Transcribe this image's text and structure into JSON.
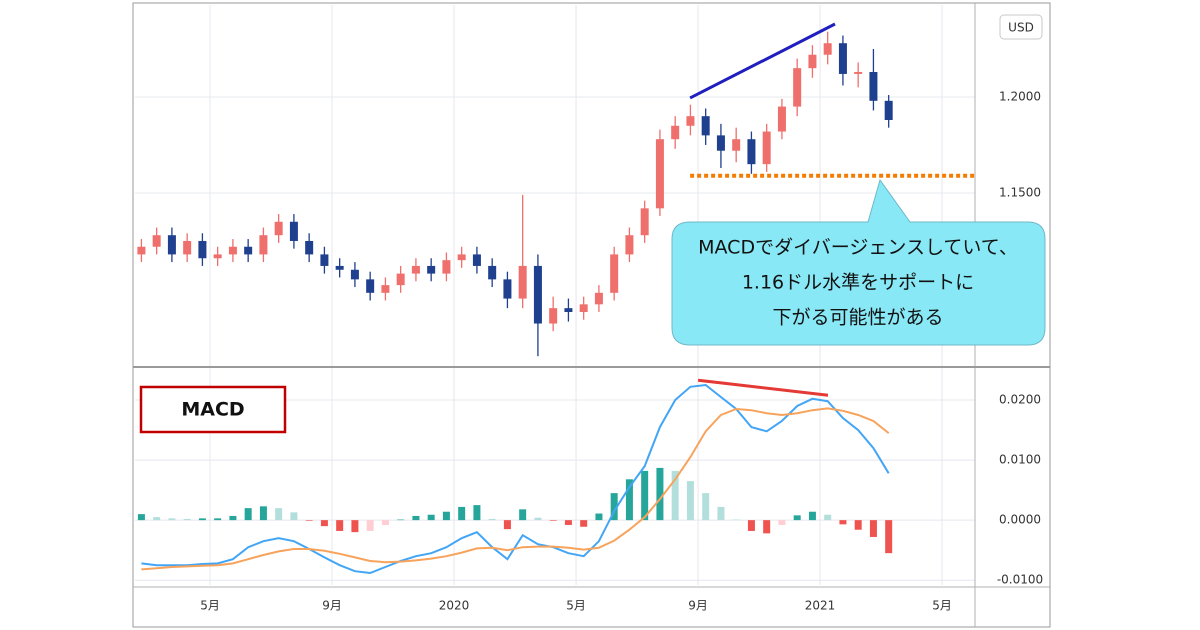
{
  "chart_data": [
    {
      "type": "candlestick",
      "currency": "USD",
      "x": [
        1.75,
        2.25,
        2.75,
        3.25,
        3.75,
        4.25,
        4.75,
        5.25,
        5.75,
        6.25,
        6.75,
        7.25,
        7.75,
        8.25,
        8.75,
        9.25,
        9.75,
        10.25,
        10.75,
        11.25,
        11.75,
        12.25,
        12.75,
        13.25,
        13.75,
        14.25,
        14.75,
        15.25,
        15.75,
        16.25,
        16.75,
        17.25,
        17.75,
        18.25,
        18.75,
        19.25,
        19.75,
        20.25,
        20.75,
        21.25,
        21.75,
        22.25,
        22.75,
        23.25,
        23.75,
        24.25,
        24.75,
        25.25,
        25.75,
        26.25
      ],
      "open": [
        1.118,
        1.122,
        1.128,
        1.118,
        1.125,
        1.116,
        1.118,
        1.122,
        1.118,
        1.128,
        1.135,
        1.125,
        1.118,
        1.112,
        1.11,
        1.105,
        1.098,
        1.102,
        1.108,
        1.112,
        1.108,
        1.115,
        1.118,
        1.112,
        1.105,
        1.095,
        1.112,
        1.082,
        1.09,
        1.088,
        1.092,
        1.098,
        1.118,
        1.128,
        1.142,
        1.178,
        1.185,
        1.19,
        1.18,
        1.172,
        1.178,
        1.165,
        1.182,
        1.195,
        1.215,
        1.222,
        1.228,
        1.212,
        1.213,
        1.198
      ],
      "high": [
        1.126,
        1.132,
        1.132,
        1.129,
        1.129,
        1.122,
        1.126,
        1.126,
        1.132,
        1.139,
        1.139,
        1.129,
        1.122,
        1.116,
        1.114,
        1.109,
        1.106,
        1.112,
        1.116,
        1.116,
        1.119,
        1.122,
        1.122,
        1.116,
        1.109,
        1.149,
        1.118,
        1.096,
        1.095,
        1.096,
        1.102,
        1.122,
        1.132,
        1.146,
        1.183,
        1.19,
        1.196,
        1.194,
        1.186,
        1.184,
        1.182,
        1.186,
        1.199,
        1.22,
        1.227,
        1.234,
        1.232,
        1.218,
        1.225,
        1.201
      ],
      "low": [
        1.114,
        1.118,
        1.114,
        1.114,
        1.112,
        1.112,
        1.114,
        1.114,
        1.114,
        1.124,
        1.121,
        1.114,
        1.108,
        1.106,
        1.101,
        1.094,
        1.094,
        1.098,
        1.104,
        1.104,
        1.104,
        1.111,
        1.108,
        1.101,
        1.09,
        1.09,
        1.065,
        1.078,
        1.083,
        1.084,
        1.088,
        1.094,
        1.114,
        1.124,
        1.138,
        1.173,
        1.18,
        1.175,
        1.163,
        1.166,
        1.16,
        1.161,
        1.178,
        1.19,
        1.21,
        1.217,
        1.206,
        1.205,
        1.193,
        1.184
      ],
      "close": [
        1.122,
        1.128,
        1.118,
        1.125,
        1.116,
        1.118,
        1.122,
        1.118,
        1.128,
        1.135,
        1.125,
        1.118,
        1.112,
        1.11,
        1.105,
        1.098,
        1.102,
        1.108,
        1.112,
        1.108,
        1.115,
        1.118,
        1.112,
        1.105,
        1.095,
        1.112,
        1.082,
        1.09,
        1.088,
        1.092,
        1.098,
        1.118,
        1.128,
        1.142,
        1.178,
        1.185,
        1.19,
        1.18,
        1.172,
        1.178,
        1.165,
        1.182,
        1.195,
        1.215,
        1.222,
        1.228,
        1.212,
        1.213,
        1.198,
        1.188
      ],
      "up_color": "#ef6f6c",
      "down_color": "#1f3f8f",
      "xlim": [
        1.54,
        29.08
      ],
      "ylim": [
        1.0604,
        1.2479
      ],
      "yticks": [
        {
          "value": 1.15,
          "label": "1.1500"
        },
        {
          "value": 1.2,
          "label": "1.2000"
        }
      ],
      "trend_line": {
        "x": [
          19.74,
          24.49
        ],
        "y": [
          1.1995,
          1.238
        ],
        "color": "#1f1fbf"
      },
      "support_line": {
        "value": 1.159,
        "x": [
          19.74,
          29.08
        ],
        "color": "#f57c00"
      },
      "callout": {
        "lines": [
          "MACDでダイバージェンスしていて、",
          "1.16ドル水準をサポートに",
          "下がる可能性がある"
        ],
        "color": "#88e8f6"
      }
    },
    {
      "type": "macd",
      "title": "MACD",
      "x": [
        1.75,
        2.25,
        2.75,
        3.25,
        3.75,
        4.25,
        4.75,
        5.25,
        5.75,
        6.25,
        6.75,
        7.25,
        7.75,
        8.25,
        8.75,
        9.25,
        9.75,
        10.25,
        10.75,
        11.25,
        11.75,
        12.25,
        12.75,
        13.25,
        13.75,
        14.25,
        14.75,
        15.25,
        15.75,
        16.25,
        16.75,
        17.25,
        17.75,
        18.25,
        18.75,
        19.25,
        19.75,
        20.25,
        20.75,
        21.25,
        21.75,
        22.25,
        22.75,
        23.25,
        23.75,
        24.25,
        24.75,
        25.25,
        25.75,
        26.25
      ],
      "lines": [
        {
          "color": "#42a5f5",
          "values": [
            -0.0072,
            -0.0075,
            -0.0075,
            -0.0075,
            -0.0073,
            -0.0072,
            -0.0065,
            -0.0045,
            -0.0035,
            -0.003,
            -0.0035,
            -0.0048,
            -0.0062,
            -0.0075,
            -0.0085,
            -0.0088,
            -0.0078,
            -0.0068,
            -0.006,
            -0.0055,
            -0.0045,
            -0.003,
            -0.002,
            -0.0045,
            -0.0065,
            -0.0025,
            -0.004,
            -0.0045,
            -0.0055,
            -0.006,
            -0.0035,
            0.0015,
            0.0055,
            0.009,
            0.0155,
            0.02,
            0.0222,
            0.0225,
            0.0205,
            0.0185,
            0.0155,
            0.0148,
            0.0165,
            0.019,
            0.0202,
            0.0198,
            0.017,
            0.015,
            0.012,
            0.0078
          ]
        },
        {
          "color": "#f7a35c",
          "values": [
            -0.0082,
            -0.008,
            -0.0078,
            -0.0077,
            -0.0076,
            -0.0075,
            -0.0072,
            -0.0065,
            -0.0058,
            -0.0052,
            -0.0048,
            -0.0048,
            -0.0051,
            -0.0056,
            -0.0062,
            -0.0068,
            -0.007,
            -0.0069,
            -0.0067,
            -0.0064,
            -0.006,
            -0.0054,
            -0.0047,
            -0.0046,
            -0.005,
            -0.0045,
            -0.0044,
            -0.0044,
            -0.0046,
            -0.0049,
            -0.0046,
            -0.0034,
            -0.0016,
            0.0005,
            0.0035,
            0.0068,
            0.0105,
            0.0148,
            0.0175,
            0.0185,
            0.0183,
            0.0178,
            0.0175,
            0.0178,
            0.0183,
            0.0186,
            0.0182,
            0.0175,
            0.0165,
            0.0145
          ]
        }
      ],
      "histogram": {
        "values": [
          0.001,
          0.0005,
          0.0003,
          0.0002,
          0.0003,
          0.0003,
          0.0007,
          0.002,
          0.0023,
          0.002,
          0.0013,
          -0.0001,
          -0.001,
          -0.0018,
          -0.002,
          -0.0018,
          -0.0008,
          0.0001,
          0.0007,
          0.0009,
          0.0014,
          0.0022,
          0.0025,
          0.0002,
          -0.0015,
          0.0018,
          0.0004,
          -0.0001,
          -0.0008,
          -0.0011,
          0.0011,
          0.0045,
          0.0068,
          0.0082,
          0.0087,
          0.0082,
          0.0065,
          0.0045,
          0.0022,
          0.0001,
          -0.0018,
          -0.0022,
          -0.0008,
          0.0008,
          0.0014,
          0.0009,
          -0.0007,
          -0.0016,
          -0.0028,
          -0.0055
        ],
        "colors": {
          "up_rising": "#26a69a",
          "up_falling": "#b2dfdb",
          "down_falling": "#ef5350",
          "down_rising": "#ffcdd2"
        }
      },
      "divergence_line": {
        "x": [
          20.0,
          24.26
        ],
        "y": [
          0.0233,
          0.0208
        ],
        "color": "#e53935"
      },
      "title_color": "#c00000",
      "xlim": [
        1.54,
        29.08
      ],
      "ylim": [
        -0.0108,
        0.025
      ],
      "yticks": [
        {
          "value": -0.01,
          "label": "-0.0100"
        },
        {
          "value": 0,
          "label": "0.0000"
        },
        {
          "value": 0.01,
          "label": "0.0100"
        },
        {
          "value": 0.02,
          "label": "0.0200"
        }
      ],
      "xticks": [
        {
          "value": 4,
          "label": "5月"
        },
        {
          "value": 8,
          "label": "9月"
        },
        {
          "value": 12,
          "label": "2020"
        },
        {
          "value": 16,
          "label": "5月"
        },
        {
          "value": 20,
          "label": "9月"
        },
        {
          "value": 24,
          "label": "2021"
        },
        {
          "value": 28,
          "label": "5月"
        }
      ]
    }
  ]
}
